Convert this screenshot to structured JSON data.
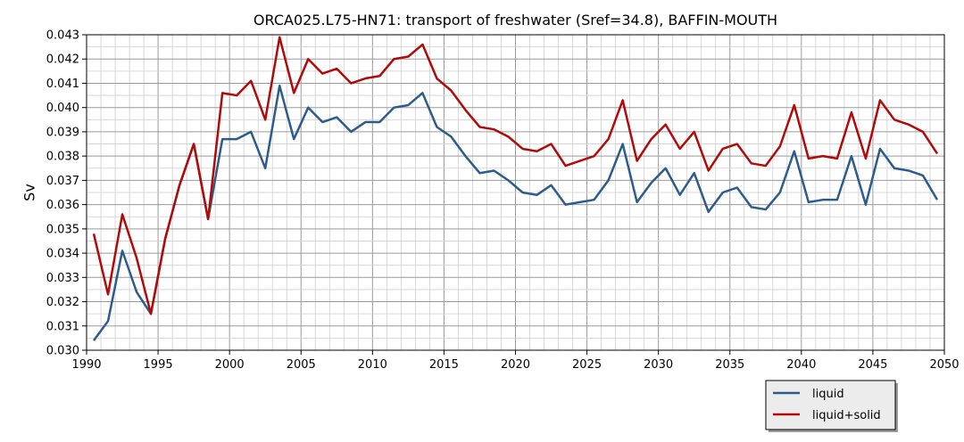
{
  "chart_data": {
    "type": "line",
    "title": "ORCA025.L75-HN71: transport of freshwater (Sref=34.8), BAFFIN-MOUTH",
    "xlabel": "",
    "ylabel": "Sv",
    "xlim": [
      1990,
      2050
    ],
    "ylim": [
      0.03,
      0.043
    ],
    "xticks": [
      "1990",
      "1995",
      "2000",
      "2005",
      "2010",
      "2015",
      "2020",
      "2025",
      "2030",
      "2035",
      "2040",
      "2045",
      "2050"
    ],
    "yticks": [
      "0.030",
      "0.031",
      "0.032",
      "0.033",
      "0.034",
      "0.035",
      "0.036",
      "0.037",
      "0.038",
      "0.039",
      "0.040",
      "0.041",
      "0.042",
      "0.043"
    ],
    "grid": true,
    "legend_position": "bottom-right, below plot",
    "x": [
      1990.5,
      1991.5,
      1992.5,
      1993.5,
      1994.5,
      1995.5,
      1996.5,
      1997.5,
      1998.5,
      1999.5,
      2000.5,
      2001.5,
      2002.5,
      2003.5,
      2004.5,
      2005.5,
      2006.5,
      2007.5,
      2008.5,
      2009.5,
      2010.5,
      2011.5,
      2012.5,
      2013.5,
      2014.5,
      2015.5,
      2016.5,
      2017.5,
      2018.5,
      2019.5,
      2020.5,
      2021.5,
      2022.5,
      2023.5,
      2024.5,
      2025.5,
      2026.5,
      2027.5,
      2028.5,
      2029.5,
      2030.5,
      2031.5,
      2032.5,
      2033.5,
      2034.5,
      2035.5,
      2036.5,
      2037.5,
      2038.5,
      2039.5,
      2040.5,
      2041.5,
      2042.5,
      2043.5,
      2044.5,
      2045.5,
      2046.5,
      2047.5,
      2048.5,
      2049.5
    ],
    "series": [
      {
        "name": "liquid",
        "color": "#2e5c8a",
        "values": [
          0.0304,
          0.0312,
          0.0341,
          0.0324,
          0.0315,
          0.0346,
          0.0368,
          0.0385,
          0.0354,
          0.0387,
          0.0387,
          0.039,
          0.0375,
          0.0409,
          0.0387,
          0.04,
          0.0394,
          0.0396,
          0.039,
          0.0394,
          0.0394,
          0.04,
          0.0401,
          0.0406,
          0.0392,
          0.0388,
          0.038,
          0.0373,
          0.0374,
          0.037,
          0.0365,
          0.0364,
          0.0368,
          0.036,
          0.0361,
          0.0362,
          0.037,
          0.0385,
          0.0361,
          0.0369,
          0.0375,
          0.0364,
          0.0373,
          0.0357,
          0.0365,
          0.0367,
          0.0359,
          0.0358,
          0.0365,
          0.0382,
          0.0361,
          0.0362,
          0.0362,
          0.038,
          0.036,
          0.0383,
          0.0375,
          0.0374,
          0.0372,
          0.0362
        ]
      },
      {
        "name": "liquid+solid",
        "color": "#b00a0a",
        "values": [
          0.0348,
          0.0323,
          0.0356,
          0.0338,
          0.0315,
          0.0346,
          0.0368,
          0.0385,
          0.0354,
          0.0406,
          0.0405,
          0.0411,
          0.0395,
          0.0429,
          0.0406,
          0.042,
          0.0414,
          0.0416,
          0.041,
          0.0412,
          0.0413,
          0.042,
          0.0421,
          0.0426,
          0.0412,
          0.0407,
          0.0399,
          0.0392,
          0.0391,
          0.0388,
          0.0383,
          0.0382,
          0.0385,
          0.0376,
          0.0378,
          0.038,
          0.0387,
          0.0403,
          0.0378,
          0.0387,
          0.0393,
          0.0383,
          0.039,
          0.0374,
          0.0383,
          0.0385,
          0.0377,
          0.0376,
          0.0384,
          0.0401,
          0.0379,
          0.038,
          0.0379,
          0.0398,
          0.0379,
          0.0403,
          0.0395,
          0.0393,
          0.039,
          0.0381
        ]
      }
    ]
  }
}
